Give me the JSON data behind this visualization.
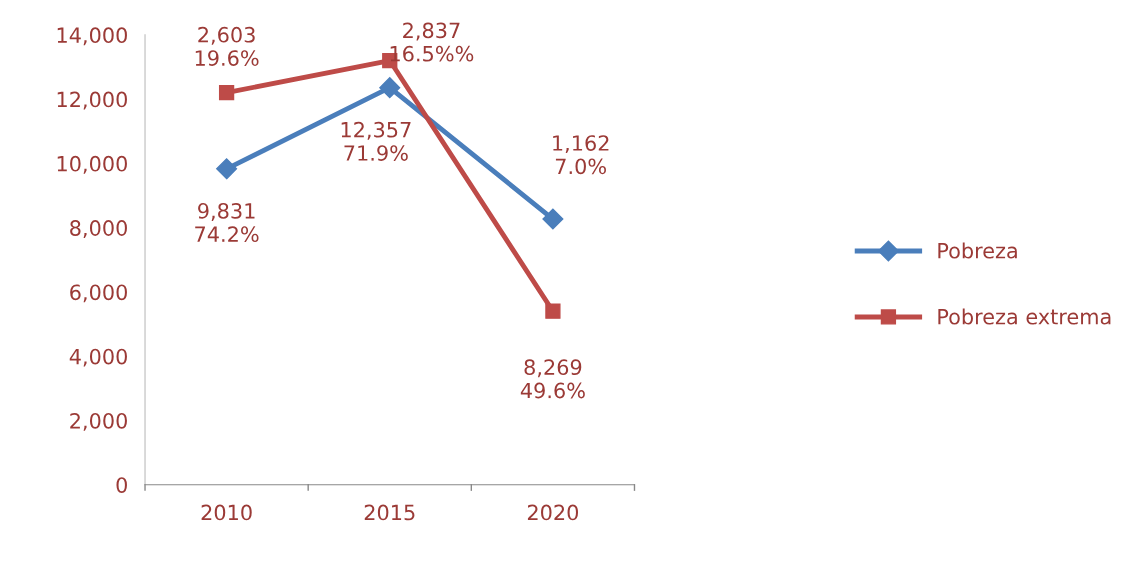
{
  "chart_data": {
    "type": "line",
    "categories": [
      "2010",
      "2015",
      "2020"
    ],
    "series": [
      {
        "name": "Pobreza",
        "color": "#4a7ebb",
        "marker": "diamond",
        "values": [
          9831,
          12357,
          8269
        ]
      },
      {
        "name": "Pobreza extrema",
        "color": "#be4b48",
        "marker": "square",
        "values": [
          12200,
          13200,
          5400
        ]
      }
    ],
    "ylim": [
      0,
      14000
    ],
    "yticks": [
      {
        "value": 0,
        "label": "0"
      },
      {
        "value": 2000,
        "label": "2,000"
      },
      {
        "value": 4000,
        "label": "4,000"
      },
      {
        "value": 6000,
        "label": "6,000"
      },
      {
        "value": 8000,
        "label": "8,000"
      },
      {
        "value": 10000,
        "label": "10,000"
      },
      {
        "value": 12000,
        "label": "12,000"
      },
      {
        "value": 14000,
        "label": "14,000"
      }
    ],
    "grid": false,
    "legend": "right",
    "line_style": "solid",
    "annotations": [
      {
        "text": "2,603\n19.6%",
        "x": "2010",
        "y": 12200
      },
      {
        "text": "9,831\n74.2%",
        "x": "2010",
        "y": 9831
      },
      {
        "text": "12,357\n71.9%",
        "x": "2015",
        "y": 12357
      },
      {
        "text": "2,837\n16.5%%",
        "x": "2015",
        "y": 13200
      },
      {
        "text": "1,162\n7.0%",
        "x": "2020",
        "y": 8269
      },
      {
        "text": "8,269\n49.6%",
        "x": "2020",
        "y": 5400
      }
    ]
  }
}
